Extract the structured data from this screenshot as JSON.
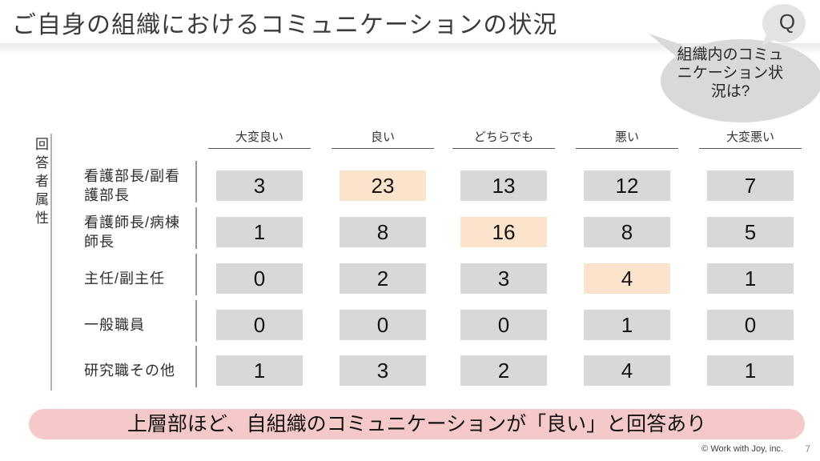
{
  "slide": {
    "title": "ご自身の組織におけるコミュニケーションの状況",
    "page_number": "7",
    "copyright": "© Work with Joy, inc."
  },
  "question_bubble": {
    "q_label": "Q",
    "text": "組織内のコミュニケーション状況は?"
  },
  "table": {
    "axis_label": "回答者属性",
    "columns": [
      "大変良い",
      "良い",
      "どちらでも",
      "悪い",
      "大変悪い"
    ],
    "rows": [
      {
        "label": "看護部長/副看護部長",
        "values": [
          3,
          23,
          13,
          12,
          7
        ],
        "highlight": 1
      },
      {
        "label": "看護師長/病棟師長",
        "values": [
          1,
          8,
          16,
          8,
          5
        ],
        "highlight": 2
      },
      {
        "label": "主任/副主任",
        "values": [
          0,
          2,
          3,
          4,
          1
        ],
        "highlight": 3
      },
      {
        "label": "一般職員",
        "values": [
          0,
          0,
          0,
          1,
          0
        ],
        "highlight": -1
      },
      {
        "label": "研究職その他",
        "values": [
          1,
          3,
          2,
          4,
          1
        ],
        "highlight": -1
      }
    ]
  },
  "banner": {
    "text": "上層部ほど、自組織のコミュニケーションが「良い」と回答あり"
  },
  "colors": {
    "cell_gray": "#d8d8d8",
    "cell_highlight": "#fbe4cb",
    "banner_pink": "#f5c9c9",
    "bubble_gray": "#d9d9d9",
    "q_bubble_gray": "#e3e3e3"
  },
  "chart_data": {
    "type": "table",
    "title": "ご自身の組織におけるコミュニケーションの状況",
    "question": "組織内のコミュニケーション状況は?",
    "row_axis_label": "回答者属性",
    "columns": [
      "大変良い",
      "良い",
      "どちらでも",
      "悪い",
      "大変悪い"
    ],
    "rows": [
      {
        "label": "看護部長/副看護部長",
        "values": [
          3,
          23,
          13,
          12,
          7
        ]
      },
      {
        "label": "看護師長/病棟師長",
        "values": [
          1,
          8,
          16,
          8,
          5
        ]
      },
      {
        "label": "主任/副主任",
        "values": [
          0,
          2,
          3,
          4,
          1
        ]
      },
      {
        "label": "一般職員",
        "values": [
          0,
          0,
          0,
          1,
          0
        ]
      },
      {
        "label": "研究職その他",
        "values": [
          1,
          3,
          2,
          4,
          1
        ]
      }
    ],
    "highlighted_cells": [
      {
        "row": "看護部長/副看護部長",
        "column": "良い",
        "value": 23
      },
      {
        "row": "看護師長/病棟師長",
        "column": "どちらでも",
        "value": 16
      },
      {
        "row": "主任/副主任",
        "column": "悪い",
        "value": 4
      }
    ],
    "annotation": "上層部ほど、自組織のコミュニケーションが「良い」と回答あり"
  }
}
